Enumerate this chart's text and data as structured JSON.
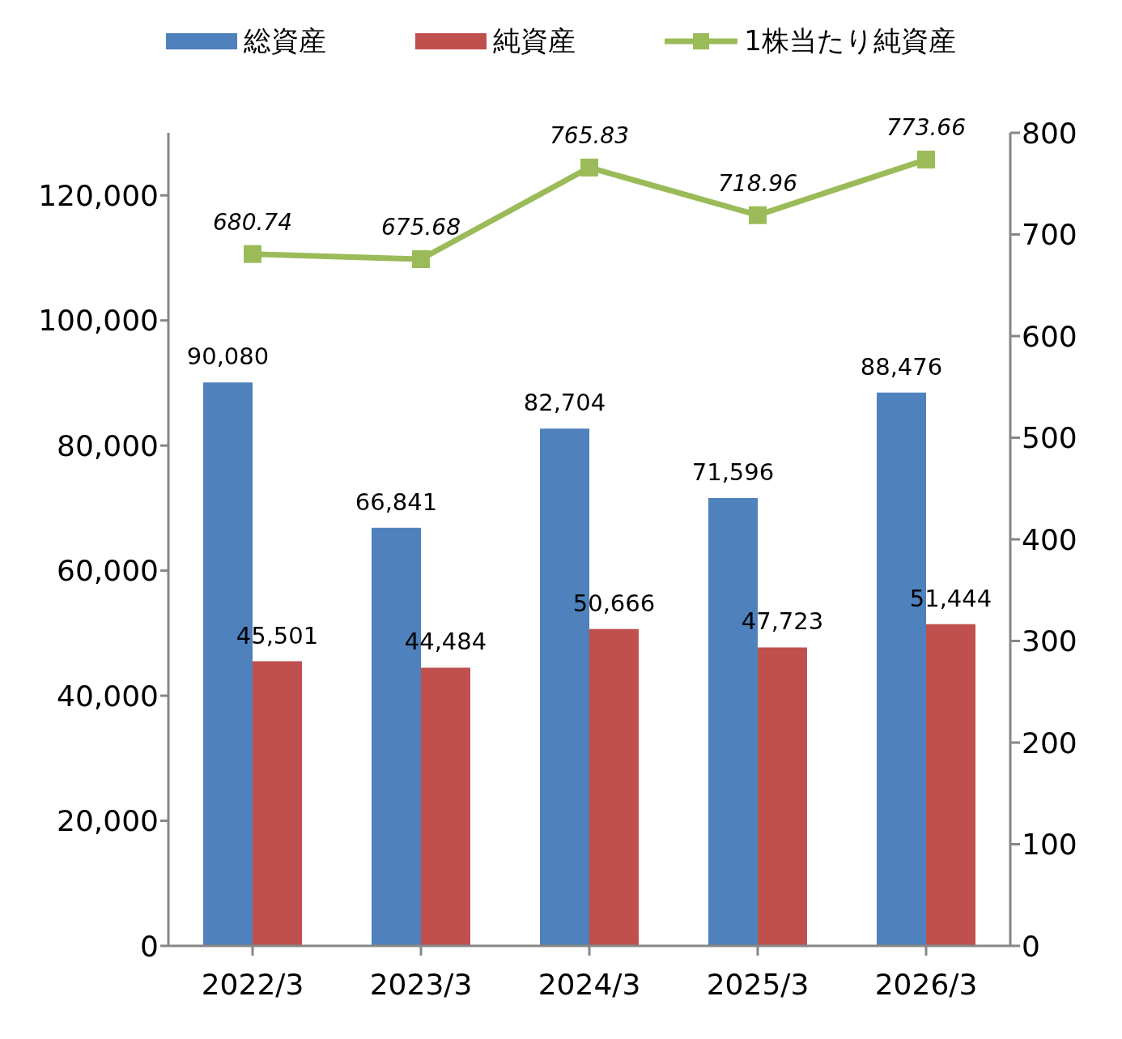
{
  "chart_data": {
    "type": "bar",
    "categories": [
      "2022/3",
      "2023/3",
      "2024/3",
      "2025/3",
      "2026/3"
    ],
    "series": [
      {
        "name": "総資産",
        "color": "#4f81bd",
        "values": [
          90080,
          66841,
          82704,
          71596,
          88476
        ],
        "value_labels": [
          "90,080",
          "66,841",
          "82,704",
          "71,596",
          "88,476"
        ]
      },
      {
        "name": "純資産",
        "color": "#c0504d",
        "values": [
          45501,
          44484,
          50666,
          47723,
          51444
        ],
        "value_labels": [
          "45,501",
          "44,484",
          "50,666",
          "47,723",
          "51,444"
        ]
      },
      {
        "name": "1株当たり純資産",
        "type": "line",
        "axis": "y2",
        "color": "#9bbb59",
        "marker": "square",
        "values": [
          680.74,
          675.68,
          765.83,
          718.96,
          773.66
        ]
      }
    ],
    "ylim": [
      0,
      130000
    ],
    "yticks": [
      {
        "value": 0,
        "label": "0"
      },
      {
        "value": 20000,
        "label": "20,000"
      },
      {
        "value": 40000,
        "label": "40,000"
      },
      {
        "value": 60000,
        "label": "60,000"
      },
      {
        "value": 80000,
        "label": "80,000"
      },
      {
        "value": 100000,
        "label": "100,000"
      },
      {
        "value": 120000,
        "label": "120,000"
      }
    ],
    "y2lim": [
      0,
      800
    ],
    "y2ticks": [
      0,
      100,
      200,
      300,
      400,
      500,
      600,
      700,
      800
    ],
    "data_labels": true,
    "legend": "top",
    "grid": false
  }
}
